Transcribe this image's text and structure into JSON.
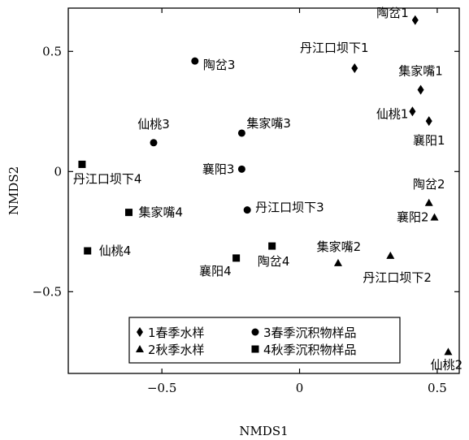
{
  "chart_data": {
    "type": "scatter",
    "title": "",
    "xlabel": "NMDS1",
    "ylabel": "NMDS2",
    "xlim": [
      -0.84,
      0.58
    ],
    "ylim": [
      -0.84,
      0.68
    ],
    "xticks": [
      {
        "value": -0.5,
        "label": "−0.5"
      },
      {
        "value": 0,
        "label": "0"
      },
      {
        "value": 0.5,
        "label": "0.5"
      }
    ],
    "yticks": [
      {
        "value": 0.5,
        "label": "0.5"
      },
      {
        "value": 0,
        "label": "0"
      },
      {
        "value": -0.5,
        "label": "−0.5"
      }
    ],
    "grid": false,
    "legend_position": "bottom-center",
    "series": [
      {
        "name": "1春季水样",
        "marker": "diamond",
        "points": [
          {
            "x": 0.42,
            "y": 0.63,
            "label": "陶岔1",
            "anchor": "end",
            "dx": -8,
            "dy": -4
          },
          {
            "x": 0.2,
            "y": 0.43,
            "label": "丹江口坝下1",
            "anchor": "middle",
            "dx": -25,
            "dy": -20
          },
          {
            "x": 0.44,
            "y": 0.34,
            "label": "集家嘴1",
            "anchor": "middle",
            "dx": 0,
            "dy": -18
          },
          {
            "x": 0.41,
            "y": 0.25,
            "label": "仙桃1",
            "anchor": "end",
            "dx": -5,
            "dy": 8
          },
          {
            "x": 0.47,
            "y": 0.21,
            "label": "襄阳1",
            "anchor": "middle",
            "dx": 0,
            "dy": 29
          }
        ]
      },
      {
        "name": "2秋季水样",
        "marker": "triangle",
        "points": [
          {
            "x": 0.47,
            "y": -0.13,
            "label": "陶岔2",
            "anchor": "middle",
            "dx": 0,
            "dy": -18
          },
          {
            "x": 0.49,
            "y": -0.19,
            "label": "襄阳2",
            "anchor": "end",
            "dx": -7,
            "dy": 5
          },
          {
            "x": 0.33,
            "y": -0.35,
            "label": "丹江口坝下2",
            "anchor": "start",
            "dx": -34,
            "dy": 32
          },
          {
            "x": 0.14,
            "y": -0.38,
            "label": "集家嘴2",
            "anchor": "middle",
            "dx": 1,
            "dy": -15
          },
          {
            "x": 0.54,
            "y": -0.75,
            "label": "仙桃2",
            "anchor": "middle",
            "dx": -2,
            "dy": 21
          }
        ]
      },
      {
        "name": "3春季沉积物样品",
        "marker": "circle",
        "points": [
          {
            "x": -0.38,
            "y": 0.46,
            "label": "陶岔3",
            "anchor": "start",
            "dx": 10,
            "dy": 10
          },
          {
            "x": -0.53,
            "y": 0.12,
            "label": "仙桃3",
            "anchor": "middle",
            "dx": 0,
            "dy": -18
          },
          {
            "x": -0.21,
            "y": 0.16,
            "label": "集家嘴3",
            "anchor": "start",
            "dx": 6,
            "dy": -7
          },
          {
            "x": -0.21,
            "y": 0.01,
            "label": "襄阳3",
            "anchor": "end",
            "dx": -9,
            "dy": 5
          },
          {
            "x": -0.19,
            "y": -0.16,
            "label": "丹江口坝下3",
            "anchor": "start",
            "dx": 10,
            "dy": 2
          }
        ]
      },
      {
        "name": "4秋季沉积物样品",
        "marker": "square",
        "points": [
          {
            "x": -0.79,
            "y": 0.03,
            "label": "丹江口坝下4",
            "anchor": "start",
            "dx": -11,
            "dy": 23
          },
          {
            "x": -0.62,
            "y": -0.17,
            "label": "集家嘴4",
            "anchor": "start",
            "dx": 12,
            "dy": 5
          },
          {
            "x": -0.77,
            "y": -0.33,
            "label": "仙桃4",
            "anchor": "start",
            "dx": 14,
            "dy": 5
          },
          {
            "x": -0.23,
            "y": -0.36,
            "label": "襄阳4",
            "anchor": "end",
            "dx": -6,
            "dy": 21
          },
          {
            "x": -0.1,
            "y": -0.31,
            "label": "陶岔4",
            "anchor": "middle",
            "dx": 2,
            "dy": 24
          }
        ]
      }
    ]
  }
}
